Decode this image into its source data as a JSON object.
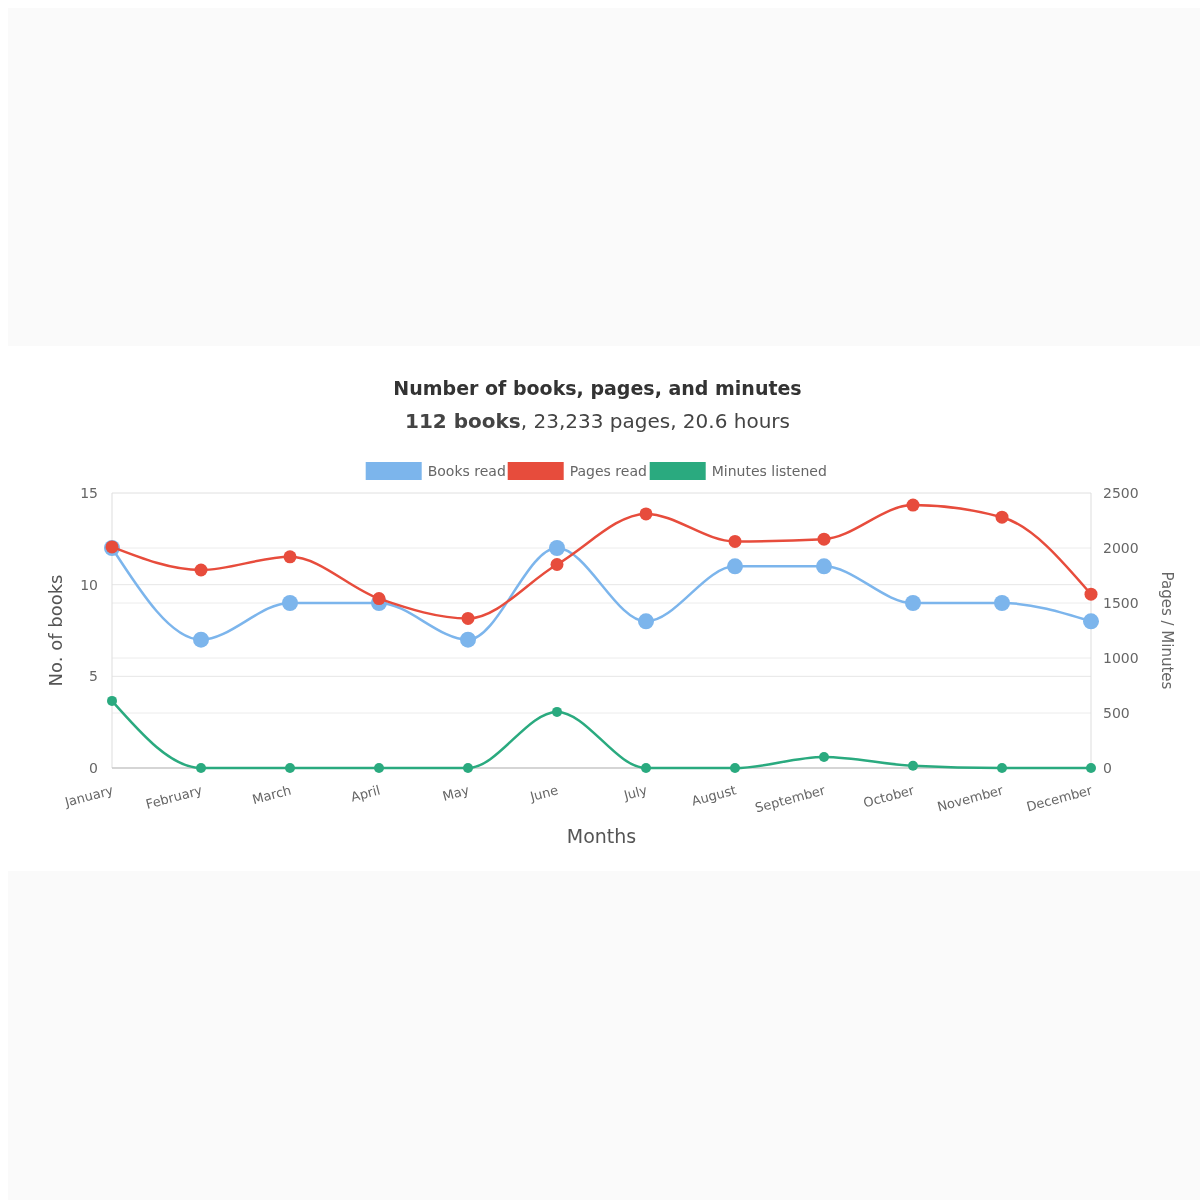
{
  "chart_data": {
    "type": "line",
    "title": "Number of books, pages, and minutes",
    "subtitle": "112 books, 23,233 pages, 20.6 hours",
    "categories": [
      "January",
      "February",
      "March",
      "April",
      "May",
      "June",
      "July",
      "August",
      "September",
      "October",
      "November",
      "December"
    ],
    "series": [
      {
        "name": "Books read",
        "color": "#7cb5ec",
        "values": [
          12,
          7,
          9,
          9,
          7,
          12,
          8,
          11,
          11,
          9,
          9,
          8
        ]
      },
      {
        "name": "Pages read",
        "color": "#e74c3c",
        "axis": "y2",
        "values": [
          2010,
          1800,
          1920,
          1540,
          1360,
          1850,
          2310,
          2060,
          2080,
          2390,
          2280,
          1580
        ]
      },
      {
        "name": "Minutes listened",
        "color": "#2aaa7f",
        "axis": "y2",
        "values": [
          610,
          0,
          0,
          0,
          0,
          510,
          0,
          0,
          100,
          20,
          0,
          0
        ]
      }
    ],
    "xlabel": "Months",
    "ylabel": "No. of books",
    "y2label": "Pages / Minutes",
    "ylim": [
      0,
      15
    ],
    "yticks": [
      0,
      5,
      10,
      15
    ],
    "y2lim": [
      0,
      2500
    ],
    "y2ticks": [
      0,
      500,
      1000,
      1500,
      2000,
      2500
    ],
    "grid": "y",
    "legend": "top",
    "marker": "circle",
    "line_style": "solid"
  }
}
